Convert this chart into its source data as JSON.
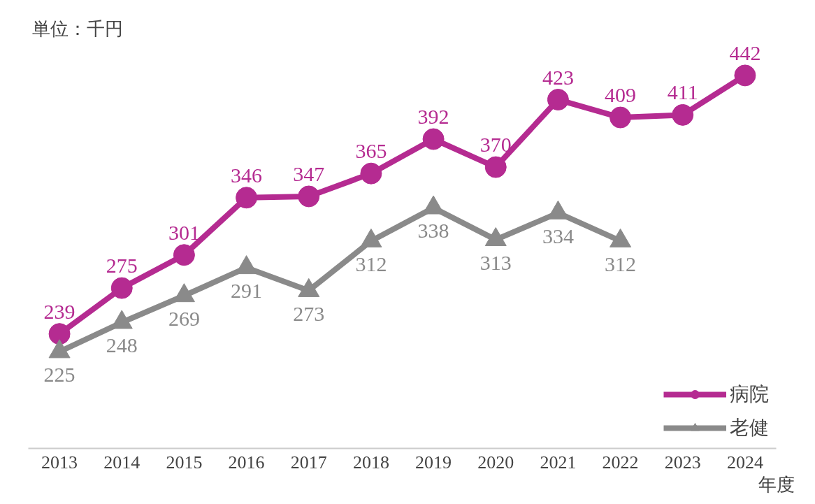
{
  "chart_data": {
    "type": "line",
    "xlabel": "年度",
    "annotations": [
      "単位：千円"
    ],
    "categories": [
      "2013",
      "2014",
      "2015",
      "2016",
      "2017",
      "2018",
      "2019",
      "2020",
      "2021",
      "2022",
      "2023",
      "2024"
    ],
    "series": [
      {
        "name": "病院",
        "color": "#b52b91",
        "marker": "circle",
        "values": [
          239,
          275,
          301,
          346,
          347,
          365,
          392,
          370,
          423,
          409,
          411,
          442
        ]
      },
      {
        "name": "老健",
        "color": "#8a8a8a",
        "marker": "triangle",
        "values": [
          225,
          248,
          269,
          291,
          273,
          312,
          338,
          313,
          334,
          312,
          null,
          null
        ]
      }
    ],
    "data_labels": true,
    "legend": "bottom right",
    "grid": false
  }
}
